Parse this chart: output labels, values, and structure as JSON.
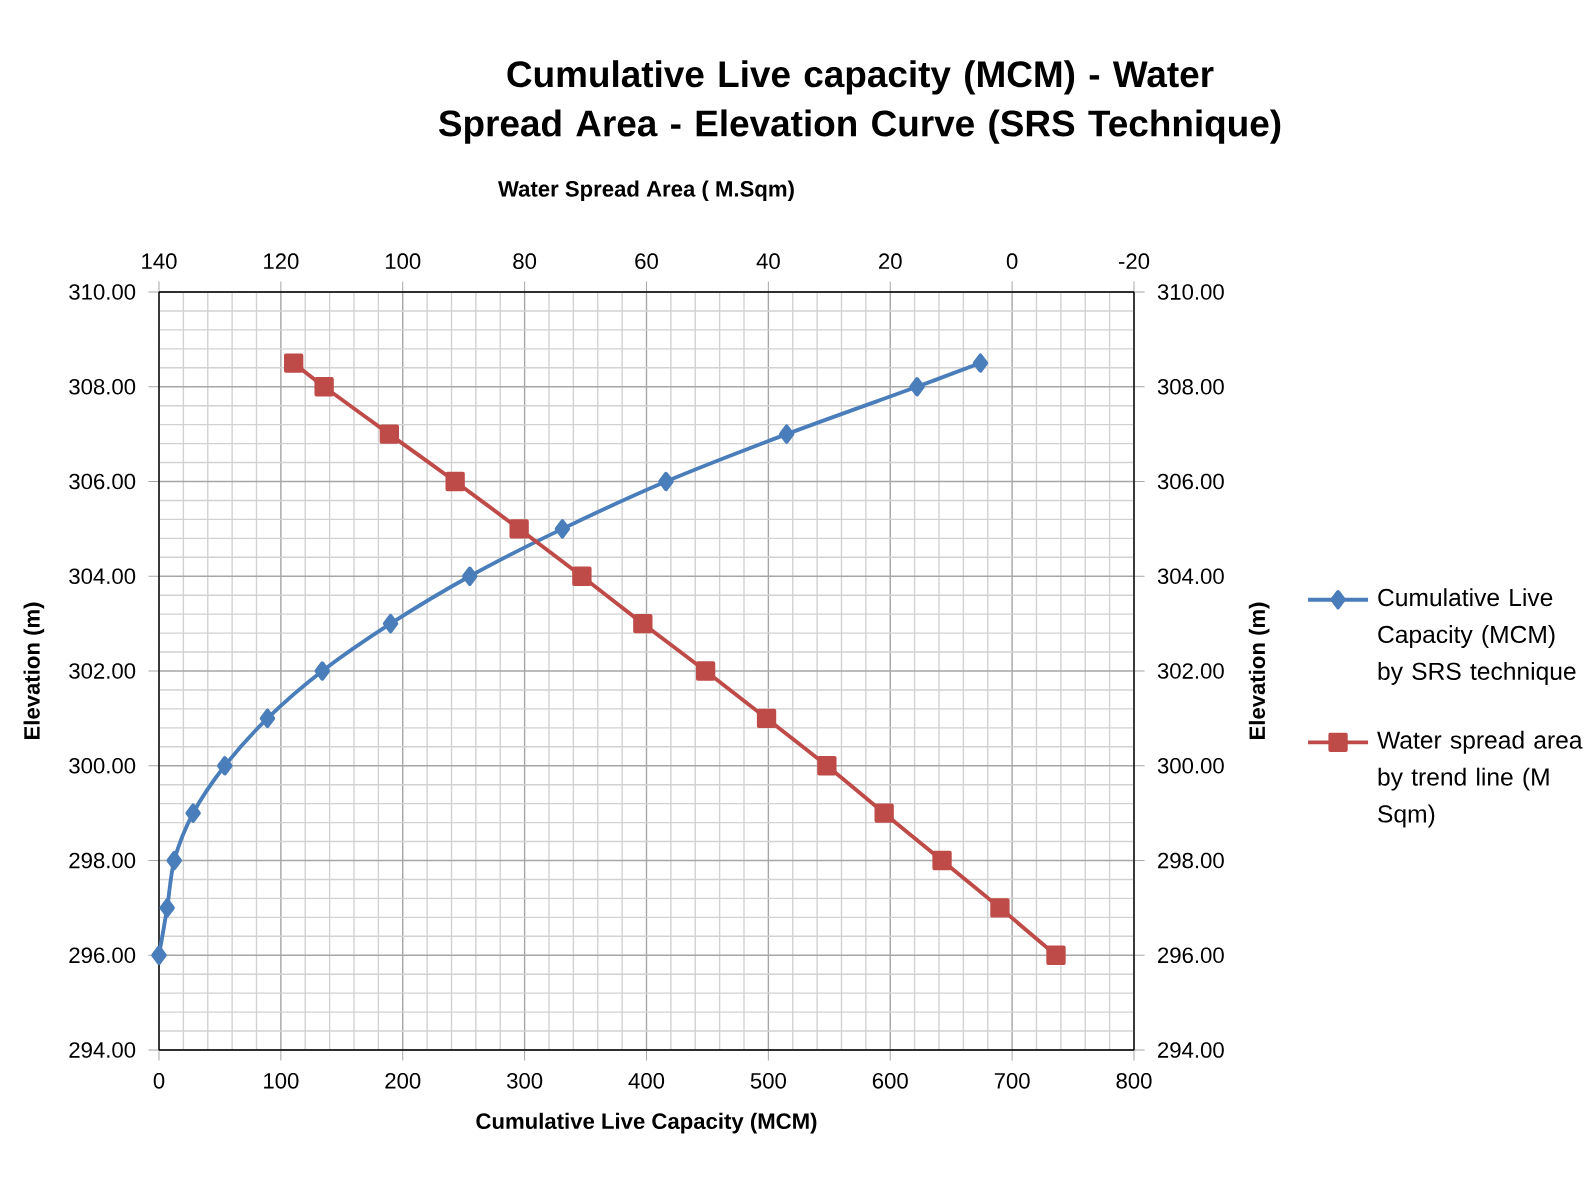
{
  "chart_data": {
    "type": "line",
    "title": "Cumulative Live capacity (MCM) - Water Spread Area - Elevation Curve (SRS Technique)",
    "xlabel": "Cumulative Live Capacity (MCM)",
    "x2label": "Water Spread Area ( M.Sqm)",
    "ylabel": "Elevation (m)",
    "y2label": "Elevation (m)",
    "xlim": [
      0,
      800
    ],
    "xticks": [
      0,
      100,
      200,
      300,
      400,
      500,
      600,
      700,
      800
    ],
    "x2lim": [
      140,
      -20
    ],
    "x2ticks": [
      140,
      120,
      100,
      80,
      60,
      40,
      20,
      0,
      -20
    ],
    "ylim": [
      294,
      310
    ],
    "yticks": [
      {
        "value": 294,
        "label": "294.00"
      },
      {
        "value": 296,
        "label": "296.00"
      },
      {
        "value": 298,
        "label": "298.00"
      },
      {
        "value": 300,
        "label": "300.00"
      },
      {
        "value": 302,
        "label": "302.00"
      },
      {
        "value": 304,
        "label": "304.00"
      },
      {
        "value": 306,
        "label": "306.00"
      },
      {
        "value": 308,
        "label": "308.00"
      },
      {
        "value": 310,
        "label": "310.00"
      }
    ],
    "y2lim": [
      294,
      310
    ],
    "y2ticks": [
      {
        "value": 294,
        "label": "294.00"
      },
      {
        "value": 296,
        "label": "296.00"
      },
      {
        "value": 298,
        "label": "298.00"
      },
      {
        "value": 300,
        "label": "300.00"
      },
      {
        "value": 302,
        "label": "302.00"
      },
      {
        "value": 304,
        "label": "304.00"
      },
      {
        "value": 306,
        "label": "306.00"
      },
      {
        "value": 308,
        "label": "308.00"
      },
      {
        "value": 310,
        "label": "310.00"
      }
    ],
    "grid": true,
    "legend": "right",
    "line_style": "solid",
    "series": [
      {
        "name": "Cumulative Live Capacity (MCM) by SRS technique",
        "color": "#4a7ebb",
        "marker": "diamond",
        "x": [
          0,
          6.7,
          12.5,
          28,
          54,
          89,
          134,
          190,
          255,
          331,
          416,
          515,
          622,
          674
        ],
        "values": [
          296,
          297,
          298,
          299,
          300,
          301,
          302,
          303,
          304,
          305,
          306,
          307,
          308,
          308.5
        ]
      },
      {
        "name": "Water spread area by trend line (M Sqm)",
        "color": "#be4b48",
        "marker": "square",
        "axis": "x2",
        "x": [
          -7.2,
          2,
          11.5,
          21,
          30.4,
          40.3,
          50.3,
          60.6,
          70.6,
          80.9,
          91.4,
          102.2,
          112.9,
          117.9
        ],
        "values": [
          296,
          297,
          298,
          299,
          300,
          301,
          302,
          303,
          304,
          305,
          306,
          307,
          308,
          308.5
        ]
      }
    ]
  }
}
